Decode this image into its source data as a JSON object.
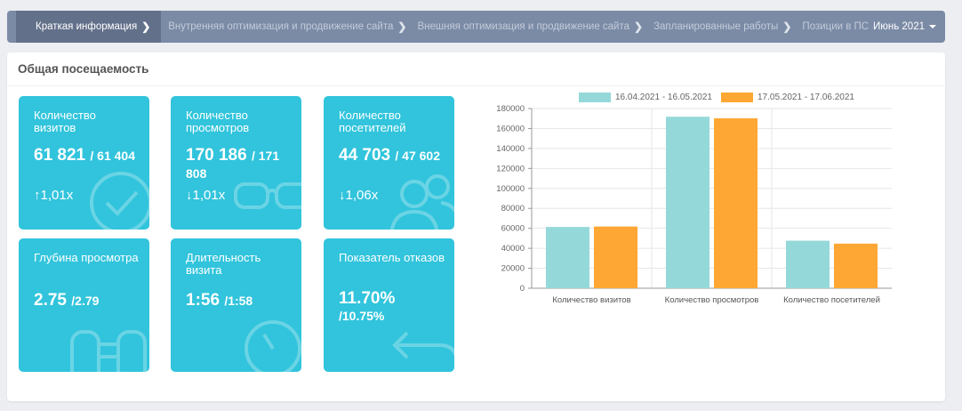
{
  "nav": {
    "items": [
      {
        "label": "Краткая информация"
      },
      {
        "label": "Внутренняя оптимизация и продвижение сайта"
      },
      {
        "label": "Внешняя оптимизация и продвижение сайта"
      },
      {
        "label": "Запланированные работы"
      },
      {
        "label": "Позиции в ПС"
      }
    ],
    "month": "Июнь 2021"
  },
  "panel": {
    "title": "Общая посещаемость"
  },
  "cards": [
    {
      "label": "Количество визитов",
      "value": "61 821",
      "prev": "/ 61 404",
      "trend": "1,01x",
      "trend_dir": "up",
      "icon": "check-circle-icon"
    },
    {
      "label": "Количество просмотров",
      "value": "170 186",
      "prev": "/ 171 808",
      "trend": "1,01x",
      "trend_dir": "down",
      "icon": "glasses-icon"
    },
    {
      "label": "Количество посетителей",
      "value": "44 703",
      "prev": "/ 47 602",
      "trend": "1,06x",
      "trend_dir": "down",
      "icon": "users-icon"
    },
    {
      "label": "Глубина просмотра",
      "value": "2.75",
      "prev": "/2.79",
      "icon": "binoculars-icon"
    },
    {
      "label": "Длительность визита",
      "value": "1:56",
      "prev": "/1:58",
      "icon": "stopwatch-icon"
    },
    {
      "label": "Показатель отказов",
      "value": "11.70%",
      "prev": "/10.75%",
      "icon": "return-arrow-icon"
    }
  ],
  "chart_data": {
    "type": "bar",
    "categories": [
      "Количество визитов",
      "Количество просмотров",
      "Количество посетителей"
    ],
    "series": [
      {
        "name": "16.04.2021 - 16.05.2021",
        "values": [
          61404,
          171808,
          47602
        ],
        "color": "#95d8d9"
      },
      {
        "name": "17.05.2021 - 17.06.2021",
        "values": [
          61821,
          170186,
          44703
        ],
        "color": "#ffa734"
      }
    ],
    "ylim": [
      0,
      180000
    ],
    "yticks": [
      0,
      20000,
      40000,
      60000,
      80000,
      100000,
      120000,
      140000,
      160000,
      180000
    ],
    "legend_position": "top",
    "grid": true
  },
  "colors": {
    "card": "#31c4dc",
    "navbar": "#7b8ba6",
    "navbar_active": "#63708a"
  }
}
